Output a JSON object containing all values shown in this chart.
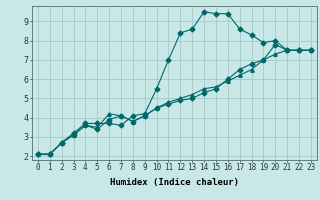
{
  "xlabel": "Humidex (Indice chaleur)",
  "bg_color": "#c8e8e8",
  "grid_color": "#a8c8c8",
  "line_color": "#006868",
  "xlim": [
    -0.5,
    23.5
  ],
  "ylim": [
    1.8,
    9.8
  ],
  "series1_x": [
    0,
    1,
    2,
    3,
    4,
    5,
    6,
    7,
    8,
    9,
    10,
    11,
    12,
    13,
    14,
    15,
    16,
    17,
    18,
    19,
    20,
    21,
    22,
    23
  ],
  "series1_y": [
    2.1,
    2.1,
    2.7,
    3.2,
    3.7,
    3.7,
    3.7,
    3.6,
    4.1,
    4.2,
    5.5,
    7.0,
    8.4,
    8.6,
    9.5,
    9.4,
    9.4,
    8.6,
    8.3,
    7.9,
    8.0,
    7.5,
    7.5,
    7.5
  ],
  "series2_x": [
    0,
    1,
    2,
    3,
    4,
    5,
    6,
    7,
    8,
    9,
    10,
    11,
    12,
    13,
    14,
    15,
    16,
    17,
    18,
    19,
    20,
    21,
    22,
    23
  ],
  "series2_y": [
    2.1,
    2.1,
    2.7,
    3.1,
    3.6,
    3.5,
    4.2,
    4.1,
    3.8,
    4.1,
    4.5,
    4.8,
    5.0,
    5.2,
    5.5,
    5.6,
    5.9,
    6.2,
    6.5,
    7.0,
    7.3,
    7.5,
    7.5,
    7.5
  ],
  "series3_x": [
    0,
    1,
    2,
    3,
    4,
    5,
    6,
    7,
    8,
    9,
    10,
    11,
    12,
    13,
    14,
    15,
    16,
    17,
    18,
    19,
    20,
    21,
    22,
    23
  ],
  "series3_y": [
    2.1,
    2.1,
    2.7,
    3.1,
    3.6,
    3.4,
    3.9,
    4.1,
    3.8,
    4.1,
    4.5,
    4.7,
    4.9,
    5.0,
    5.3,
    5.5,
    6.0,
    6.5,
    6.8,
    7.0,
    7.8,
    7.5,
    7.5,
    7.5
  ],
  "ytick_vals": [
    2,
    3,
    4,
    5,
    6,
    7,
    8,
    9
  ],
  "xtick_vals": [
    0,
    1,
    2,
    3,
    4,
    5,
    6,
    7,
    8,
    9,
    10,
    11,
    12,
    13,
    14,
    15,
    16,
    17,
    18,
    19,
    20,
    21,
    22,
    23
  ],
  "marker1": "D",
  "marker2": "^",
  "marker3": "D",
  "markersize": 2.5,
  "linewidth": 0.8,
  "xlabel_fontsize": 6.5,
  "tick_fontsize": 5.5
}
